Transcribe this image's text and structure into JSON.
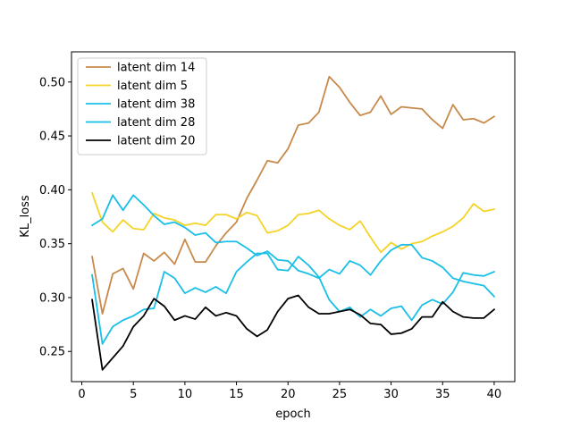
{
  "chart_data": {
    "type": "line",
    "xlabel": "epoch",
    "ylabel": "KL_loss",
    "xlim": [
      -1,
      42
    ],
    "ylim": [
      0.222,
      0.528
    ],
    "xticks": [
      0,
      5,
      10,
      15,
      20,
      25,
      30,
      35,
      40
    ],
    "yticks": [
      0.25,
      0.3,
      0.35,
      0.4,
      0.45,
      0.5
    ],
    "xtick_labels": [
      "0",
      "5",
      "10",
      "15",
      "20",
      "25",
      "30",
      "35",
      "40"
    ],
    "ytick_labels": [
      "0.25",
      "0.30",
      "0.35",
      "0.40",
      "0.45",
      "0.50"
    ],
    "legend_position": "top-left",
    "grid": false,
    "x": [
      1,
      2,
      3,
      4,
      5,
      6,
      7,
      8,
      9,
      10,
      11,
      12,
      13,
      14,
      15,
      16,
      17,
      18,
      19,
      20,
      21,
      22,
      23,
      24,
      25,
      26,
      27,
      28,
      29,
      30,
      31,
      32,
      33,
      34,
      35,
      36,
      37,
      38,
      39,
      40
    ],
    "series": [
      {
        "name": "latent dim 14",
        "color": "#c88a4a",
        "values": [
          0.338,
          0.285,
          0.322,
          0.327,
          0.308,
          0.341,
          0.334,
          0.342,
          0.331,
          0.354,
          0.333,
          0.333,
          0.348,
          0.36,
          0.37,
          0.392,
          0.409,
          0.427,
          0.425,
          0.438,
          0.46,
          0.462,
          0.472,
          0.505,
          0.495,
          0.481,
          0.469,
          0.472,
          0.487,
          0.47,
          0.477,
          0.476,
          0.475,
          0.465,
          0.457,
          0.479,
          0.465,
          0.466,
          0.462,
          0.468
        ]
      },
      {
        "name": "latent dim 5",
        "color": "#f5d327",
        "values": [
          0.397,
          0.37,
          0.361,
          0.372,
          0.364,
          0.363,
          0.378,
          0.374,
          0.372,
          0.367,
          0.369,
          0.367,
          0.377,
          0.377,
          0.373,
          0.379,
          0.376,
          0.36,
          0.362,
          0.367,
          0.377,
          0.378,
          0.381,
          0.373,
          0.367,
          0.363,
          0.371,
          0.356,
          0.342,
          0.351,
          0.345,
          0.35,
          0.352,
          0.357,
          0.361,
          0.366,
          0.374,
          0.387,
          0.38,
          0.382
        ]
      },
      {
        "name": "latent dim 38",
        "color": "#19bfe6",
        "values": [
          0.367,
          0.373,
          0.395,
          0.381,
          0.395,
          0.386,
          0.376,
          0.368,
          0.37,
          0.365,
          0.358,
          0.36,
          0.351,
          0.352,
          0.352,
          0.346,
          0.339,
          0.343,
          0.335,
          0.334,
          0.325,
          0.322,
          0.318,
          0.326,
          0.322,
          0.334,
          0.33,
          0.321,
          0.334,
          0.344,
          0.349,
          0.349,
          0.337,
          0.334,
          0.328,
          0.318,
          0.315,
          0.313,
          0.311,
          0.301
        ]
      },
      {
        "name": "latent dim 28",
        "color": "#19bfe6",
        "values": [
          0.321,
          0.257,
          0.273,
          0.279,
          0.283,
          0.289,
          0.29,
          0.324,
          0.318,
          0.304,
          0.309,
          0.305,
          0.31,
          0.304,
          0.324,
          0.333,
          0.341,
          0.341,
          0.326,
          0.325,
          0.338,
          0.33,
          0.319,
          0.298,
          0.287,
          0.291,
          0.282,
          0.289,
          0.283,
          0.29,
          0.292,
          0.279,
          0.293,
          0.298,
          0.294,
          0.305,
          0.323,
          0.321,
          0.32,
          0.324
        ]
      },
      {
        "name": "latent dim 20",
        "color": "#000000",
        "values": [
          0.298,
          0.233,
          0.244,
          0.255,
          0.273,
          0.283,
          0.299,
          0.292,
          0.279,
          0.283,
          0.28,
          0.291,
          0.283,
          0.286,
          0.283,
          0.271,
          0.264,
          0.27,
          0.287,
          0.299,
          0.302,
          0.291,
          0.285,
          0.285,
          0.287,
          0.289,
          0.284,
          0.276,
          0.275,
          0.266,
          0.267,
          0.271,
          0.282,
          0.282,
          0.296,
          0.287,
          0.282,
          0.281,
          0.281,
          0.289
        ]
      }
    ]
  }
}
